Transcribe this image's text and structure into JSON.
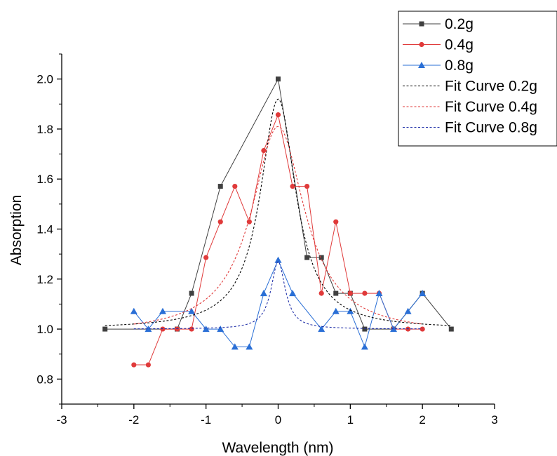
{
  "chart_data": {
    "type": "line",
    "xlabel": "Wavelength (nm)",
    "ylabel": "Absorption",
    "xlim": [
      -3,
      3
    ],
    "ylim": [
      0.7,
      2.1
    ],
    "x_ticks": [
      -3,
      -2,
      -1,
      0,
      1,
      2,
      3
    ],
    "x_tick_labels": [
      "-3",
      "-2",
      "-1",
      "0",
      "1",
      "2",
      "3"
    ],
    "y_ticks": [
      0.8,
      1.0,
      1.2,
      1.4,
      1.6,
      1.8,
      2.0
    ],
    "y_tick_labels": [
      "0.8",
      "1.0",
      "1.2",
      "1.4",
      "1.6",
      "1.8",
      "2.0"
    ],
    "grid": false,
    "legend_position": "top-right",
    "series": [
      {
        "name": "0.2g",
        "color": "#404040",
        "marker": "square",
        "style": "solid",
        "points": [
          [
            -2.4,
            1.0
          ],
          [
            -1.4,
            1.0
          ],
          [
            -1.2,
            1.143
          ],
          [
            -0.8,
            1.571
          ],
          [
            0.0,
            2.0
          ],
          [
            0.4,
            1.286
          ],
          [
            0.6,
            1.286
          ],
          [
            0.8,
            1.143
          ],
          [
            1.0,
            1.143
          ],
          [
            1.2,
            1.0
          ],
          [
            1.6,
            1.0
          ],
          [
            2.0,
            1.143
          ],
          [
            2.4,
            1.0
          ]
        ]
      },
      {
        "name": "0.4g",
        "color": "#e03a3a",
        "marker": "circle",
        "style": "solid",
        "points": [
          [
            -2.0,
            0.857
          ],
          [
            -1.8,
            0.857
          ],
          [
            -1.6,
            1.0
          ],
          [
            -1.4,
            1.0
          ],
          [
            -1.2,
            1.0
          ],
          [
            -1.0,
            1.286
          ],
          [
            -0.8,
            1.429
          ],
          [
            -0.6,
            1.571
          ],
          [
            -0.4,
            1.429
          ],
          [
            -0.2,
            1.714
          ],
          [
            0.0,
            1.857
          ],
          [
            0.2,
            1.571
          ],
          [
            0.4,
            1.571
          ],
          [
            0.6,
            1.143
          ],
          [
            0.8,
            1.429
          ],
          [
            1.0,
            1.143
          ],
          [
            1.2,
            1.143
          ],
          [
            1.4,
            1.143
          ],
          [
            1.6,
            1.0
          ],
          [
            1.8,
            1.0
          ],
          [
            2.0,
            1.0
          ]
        ]
      },
      {
        "name": "0.8g",
        "color": "#2a6fd6",
        "marker": "triangle",
        "style": "solid",
        "points": [
          [
            -2.0,
            1.071
          ],
          [
            -1.8,
            1.0
          ],
          [
            -1.6,
            1.071
          ],
          [
            -1.2,
            1.071
          ],
          [
            -1.0,
            1.0
          ],
          [
            -0.8,
            1.0
          ],
          [
            -0.6,
            0.929
          ],
          [
            -0.4,
            0.929
          ],
          [
            -0.2,
            1.143
          ],
          [
            0.0,
            1.276
          ],
          [
            0.2,
            1.143
          ],
          [
            0.6,
            1.0
          ],
          [
            0.8,
            1.071
          ],
          [
            1.0,
            1.071
          ],
          [
            1.2,
            0.929
          ],
          [
            1.4,
            1.143
          ],
          [
            1.6,
            1.0
          ],
          [
            1.8,
            1.071
          ],
          [
            2.0,
            1.143
          ]
        ]
      },
      {
        "name": "Fit Curve 0.2g",
        "color": "#000000",
        "marker": "none",
        "style": "dashed",
        "fit": {
          "model": "lorentzian",
          "base": 1.0,
          "amp": 0.92,
          "center": 0.0,
          "hwhm": 0.3,
          "x_range": [
            -2.4,
            2.4
          ]
        }
      },
      {
        "name": "Fit Curve 0.4g",
        "color": "#e03a3a",
        "marker": "none",
        "style": "dashed",
        "fit": {
          "model": "lorentzian",
          "base": 0.98,
          "amp": 0.83,
          "center": 0.0,
          "hwhm": 0.45,
          "x_range": [
            -2.0,
            2.0
          ]
        }
      },
      {
        "name": "Fit Curve 0.8g",
        "color": "#1f2fa8",
        "marker": "none",
        "style": "dashed",
        "fit": {
          "model": "lorentzian",
          "base": 1.0,
          "amp": 0.27,
          "center": 0.0,
          "hwhm": 0.12,
          "x_range": [
            -2.0,
            2.0
          ]
        }
      }
    ]
  }
}
